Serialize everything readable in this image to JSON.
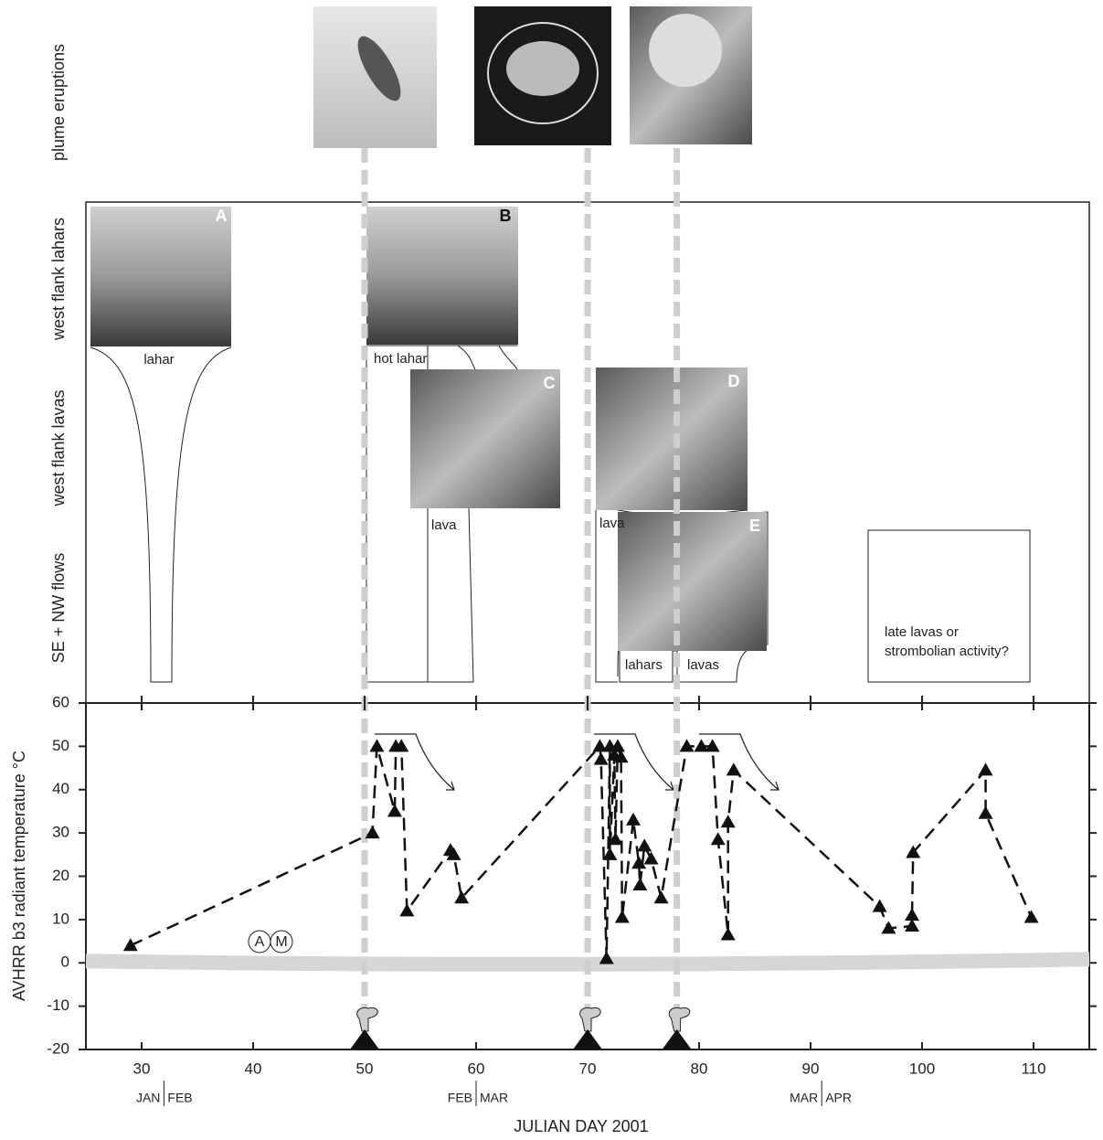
{
  "chart_data": {
    "type": "scatter",
    "ylabel": "AVHRR b3 radiant temperature °C",
    "xlabel": "JULIAN DAY 2001",
    "xlim": [
      25,
      115
    ],
    "ylim": [
      -20,
      60
    ],
    "xticks": [
      30,
      40,
      50,
      60,
      70,
      80,
      90,
      100,
      110
    ],
    "yticks": [
      60,
      50,
      40,
      30,
      20,
      10,
      0,
      -10,
      -20
    ],
    "series": [
      {
        "color": "#111111",
        "x": [
          29,
          50.7,
          51.1,
          52.7,
          52.8,
          53.3,
          53.8,
          57.7,
          58.0,
          58.7,
          71.1,
          71.2,
          71.7,
          72.0,
          72.0,
          72.4,
          72.5,
          72.7,
          73.0,
          73.1,
          74.1,
          74.6,
          74.7,
          75.1,
          75.7,
          76.6,
          78.9,
          80.2,
          81.2,
          81.7,
          82.6,
          82.6,
          83.1,
          96.2,
          97.0,
          99.1,
          99.1,
          99.2,
          105.7,
          105.7,
          109.8
        ],
        "values": [
          4,
          30,
          50,
          35,
          50,
          50,
          12,
          26,
          25,
          15,
          50,
          47,
          1,
          50,
          25,
          48,
          28.5,
          50,
          47.5,
          10.5,
          33,
          23,
          18,
          27,
          24,
          15,
          50,
          50,
          50,
          28.5,
          6.5,
          32.5,
          44.5,
          13,
          8,
          8.5,
          11,
          25.5,
          44.5,
          34.5,
          10.5
        ]
      }
    ],
    "eruption_days": [
      50,
      70,
      78
    ],
    "threshold": 0,
    "months": [
      {
        "value": 32,
        "left": "JAN",
        "right": "FEB"
      },
      {
        "value": 60,
        "left": "FEB",
        "right": "MAR"
      },
      {
        "value": 91,
        "left": "MAR",
        "right": "APR"
      }
    ],
    "annotations": [
      "A",
      "M"
    ]
  },
  "panel": {
    "row_labels": [
      "plume eruptions",
      "west flank lahars",
      "west flank lavas",
      "SE + NW flows"
    ],
    "photo_labels": [
      "A",
      "B",
      "C",
      "D",
      "E"
    ],
    "flow_labels": [
      "lahar",
      "hot lahar",
      "lava",
      "lava",
      "lahars",
      "lavas",
      "late lavas or",
      "strombolian activity?"
    ]
  }
}
